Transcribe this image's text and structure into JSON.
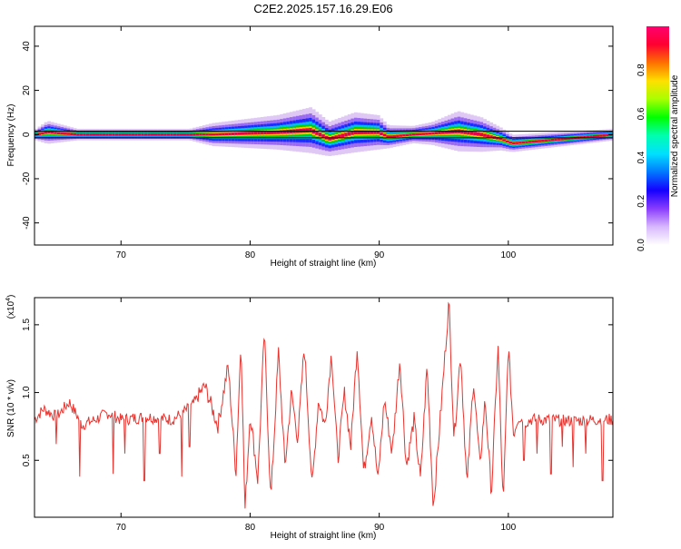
{
  "title": "C2E2.2025.157.16.29.E06",
  "colors": {
    "frame": "#000000",
    "snr_line": "#e8332e",
    "colormap": [
      "#ffffff",
      "#e0c8f4",
      "#9a6bf0",
      "#1a2cff",
      "#00bfff",
      "#00e0a0",
      "#00d000",
      "#b8e000",
      "#ffc800",
      "#ff5a00",
      "#e8004a"
    ]
  },
  "chart_data": [
    {
      "type": "heatmap",
      "title": "C2E2.2025.157.16.29.E06",
      "xlabel": "Height of straight line (km)",
      "ylabel": "Frequency (Hz)",
      "xlim": [
        63.3,
        108.1
      ],
      "ylim": [
        -50,
        49
      ],
      "x_ticks": [
        70,
        80,
        90,
        100
      ],
      "y_ticks": [
        -40,
        -20,
        0,
        20,
        40
      ],
      "colorbar": {
        "label": "Normalized spectral amplitude",
        "range": [
          0,
          1
        ],
        "ticks": [
          "0.0",
          "0.2",
          "0.4",
          "0.6",
          "0.8"
        ]
      },
      "reference_lines_hz": [
        1.5,
        -1.5
      ],
      "profile": {
        "x": [
          63.3,
          64.2,
          66.5,
          73.5,
          75.2,
          77.0,
          79.5,
          82.0,
          84.6,
          86.0,
          88.0,
          89.8,
          90.6,
          92.5,
          94.0,
          96.0,
          97.8,
          99.3,
          100.2,
          108.1
        ],
        "center_hz": [
          0,
          1,
          0,
          0,
          0,
          0,
          0.5,
          1,
          2,
          -2,
          1,
          1,
          -1,
          0,
          0.5,
          1.5,
          0,
          -2,
          -4,
          0
        ],
        "spread_hz": [
          1,
          2,
          1,
          1,
          1,
          2,
          2.5,
          3,
          4,
          3,
          3.5,
          3,
          2,
          1.5,
          2,
          3.5,
          3,
          2,
          1.5,
          1
        ]
      }
    },
    {
      "type": "line",
      "xlabel": "Height of straight line (km)",
      "ylabel": "SNR (10 * v/v)",
      "y_multiplier_label": "(x10",
      "y_multiplier_exp": "4",
      "xlim": [
        63.3,
        108.1
      ],
      "ylim": [
        0.08,
        1.7
      ],
      "x_ticks": [
        70,
        80,
        90,
        100
      ],
      "y_ticks": [
        "0.5",
        "1.0",
        "1.5"
      ],
      "series": [
        {
          "x": [
            63.3,
            64.0,
            65.0,
            66.0,
            67.0,
            68.0,
            69.0,
            70.0,
            72.0,
            74.0,
            75.5,
            76.5,
            77.5,
            78.3,
            78.9,
            79.3,
            79.6,
            80.0,
            80.6,
            81.1,
            81.6,
            82.2,
            82.7,
            83.2,
            83.7,
            84.2,
            84.8,
            85.3,
            85.8,
            86.3,
            86.8,
            87.3,
            87.8,
            88.3,
            88.8,
            89.4,
            89.9,
            90.4,
            91.0,
            91.6,
            92.1,
            92.7,
            93.2,
            93.7,
            94.2,
            94.8,
            95.4,
            95.8,
            96.3,
            96.8,
            97.3,
            97.8,
            98.2,
            98.7,
            99.2,
            99.6,
            100.0,
            100.4,
            100.8,
            101.3,
            101.8,
            103.0,
            105.0,
            107.0,
            108.1
          ],
          "y": [
            0.8,
            0.88,
            0.82,
            0.93,
            0.76,
            0.8,
            0.85,
            0.8,
            0.82,
            0.8,
            0.9,
            1.05,
            0.75,
            1.2,
            0.4,
            1.4,
            0.12,
            0.85,
            0.35,
            1.45,
            0.2,
            1.3,
            0.45,
            1.0,
            0.65,
            1.35,
            0.3,
            0.95,
            0.75,
            1.3,
            0.5,
            1.0,
            0.6,
            1.35,
            0.4,
            0.85,
            0.35,
            0.95,
            0.55,
            1.25,
            0.45,
            0.8,
            0.35,
            1.2,
            0.15,
            0.9,
            1.68,
            0.65,
            1.3,
            0.3,
            1.1,
            0.45,
            0.95,
            0.25,
            1.35,
            0.15,
            1.35,
            0.7,
            0.82,
            0.78,
            0.8,
            0.8,
            0.79,
            0.8,
            0.8
          ],
          "dips": [
            [
              65.0,
              0.62
            ],
            [
              66.8,
              0.38
            ],
            [
              69.4,
              0.4
            ],
            [
              70.3,
              0.55
            ],
            [
              71.8,
              0.35
            ],
            [
              73.0,
              0.55
            ],
            [
              74.7,
              0.38
            ],
            [
              75.3,
              0.6
            ],
            [
              101.2,
              0.5
            ],
            [
              102.2,
              0.55
            ],
            [
              103.3,
              0.4
            ],
            [
              104.2,
              0.6
            ],
            [
              105.0,
              0.45
            ],
            [
              106.0,
              0.55
            ],
            [
              107.3,
              0.35
            ]
          ]
        }
      ]
    }
  ]
}
